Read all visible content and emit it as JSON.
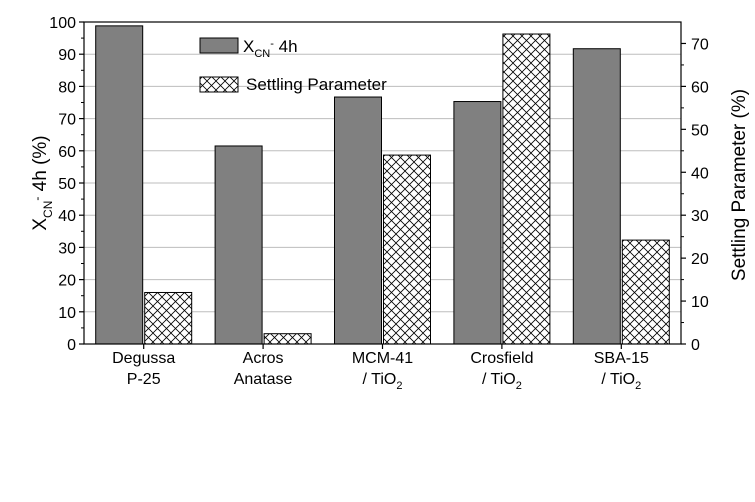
{
  "chart_data": {
    "type": "bar",
    "categories": [
      {
        "line1": "Degussa",
        "line2": "P-25",
        "line2_sub": ""
      },
      {
        "line1": "Acros",
        "line2": "Anatase",
        "line2_sub": ""
      },
      {
        "line1": "MCM-41",
        "line2": "/ TiO",
        "line2_sub": "2"
      },
      {
        "line1": "Crosfield",
        "line2": "/ TiO",
        "line2_sub": "2"
      },
      {
        "line1": "SBA-15",
        "line2": "/ TiO",
        "line2_sub": "2"
      }
    ],
    "series": [
      {
        "name_main": "X",
        "name_sub": "CN",
        "name_sup": "-",
        "name_tail": " 4h",
        "axis": "left",
        "fill": "#808080",
        "values": [
          98.8,
          61.5,
          76.7,
          75.3,
          91.7
        ]
      },
      {
        "name": "Settling Parameter",
        "axis": "right",
        "fill": "crosshatch",
        "values": [
          12.0,
          2.4,
          44.0,
          72.2,
          24.2
        ]
      }
    ],
    "y_left": {
      "label_main": "X",
      "label_sub": "CN",
      "label_sup": "-",
      "label_tail": " 4h (%)",
      "lim": [
        0,
        100
      ],
      "ticks": [
        "0",
        "10",
        "20",
        "30",
        "40",
        "50",
        "60",
        "70",
        "80",
        "90",
        "100"
      ]
    },
    "y_right": {
      "label": "Settling Parameter (%)",
      "lim": [
        0,
        75
      ],
      "ticks": [
        "0",
        "10",
        "20",
        "30",
        "40",
        "50",
        "60",
        "70"
      ]
    },
    "grid": true,
    "legend_position": "top-left"
  }
}
